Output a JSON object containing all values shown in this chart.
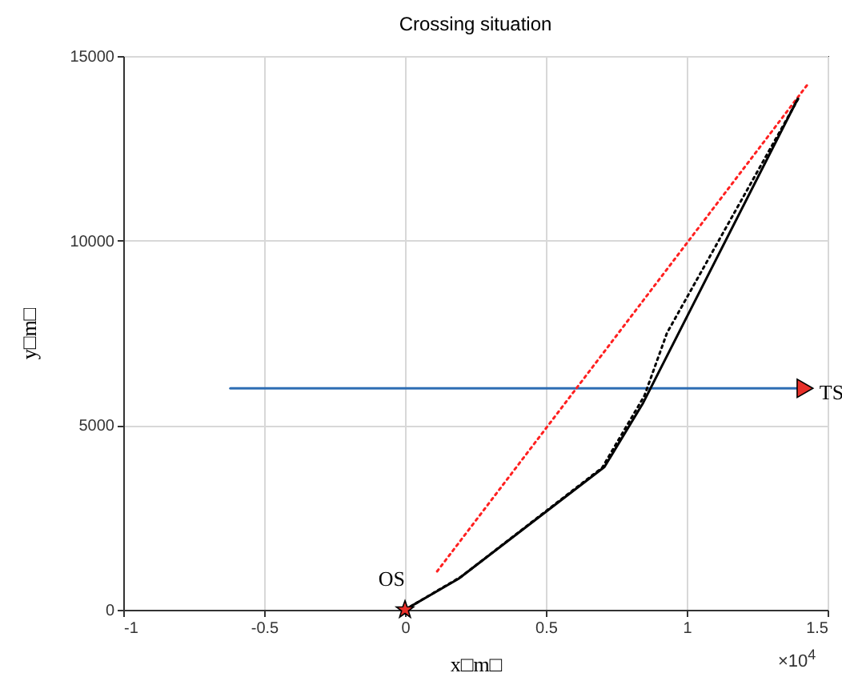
{
  "chart_data": {
    "type": "line",
    "title": "Crossing situation",
    "xlabel": "x□m□",
    "ylabel": "y□m□",
    "xlim": [
      -1,
      1.5
    ],
    "xticks": [
      -1,
      -0.5,
      0,
      0.5,
      1,
      1.5
    ],
    "ylim": [
      0,
      15000
    ],
    "yticks": [
      0,
      5000,
      10000,
      15000
    ],
    "grid": true,
    "annotations": [
      "×10$^{4}$"
    ],
    "series": [
      {
        "color": "#2e6db4",
        "line_style": "solid",
        "x": [
          -0.62,
          1.42
        ],
        "values": [
          6000,
          6000
        ]
      },
      {
        "color": "#ff2020",
        "line_style": "dotted",
        "x": [
          0.114,
          1.432
        ],
        "values": [
          1040,
          14260
        ]
      },
      {
        "color": "#000000",
        "line_style": "dotted",
        "x": [
          0,
          0.2,
          0.7,
          0.85,
          0.93,
          1.4
        ],
        "values": [
          0,
          900,
          3850,
          5800,
          7500,
          13900
        ]
      },
      {
        "color": "#000000",
        "line_style": "solid",
        "x": [
          0,
          0.19,
          0.708,
          0.845,
          1.394
        ],
        "values": [
          0,
          840,
          3870,
          5600,
          13840
        ]
      },
      {
        "type": "scatter",
        "name": "TS",
        "color": "#e8302a",
        "marker": "triangle",
        "x": [
          1.42
        ],
        "values": [
          6000
        ]
      },
      {
        "type": "scatter",
        "name": "OS",
        "color": "#e8302a",
        "marker": "star",
        "x": [
          0
        ],
        "values": [
          0
        ]
      }
    ]
  }
}
